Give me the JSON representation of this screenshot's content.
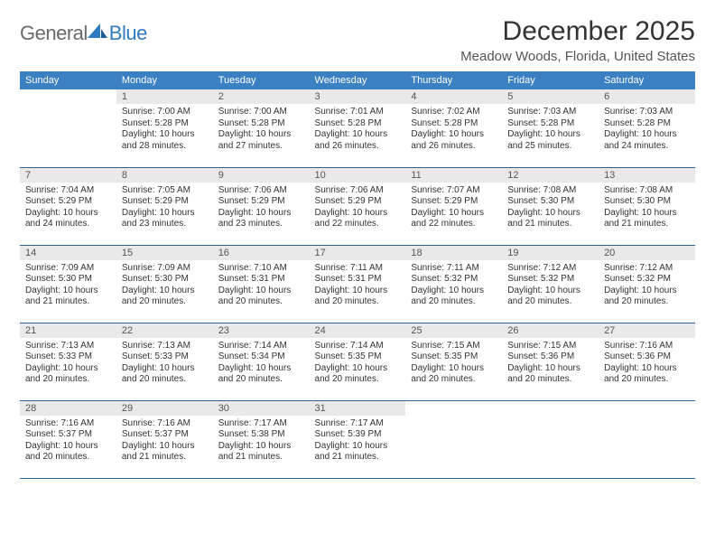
{
  "brand": {
    "word1": "General",
    "word2": "Blue"
  },
  "title": "December 2025",
  "location": "Meadow Woods, Florida, United States",
  "colors": {
    "header_bg": "#3a80c3",
    "header_text": "#ffffff",
    "daynum_bg": "#e9e9e9",
    "rule": "#2b5f98",
    "body_text": "#333333",
    "logo_gray": "#6a6a6a",
    "logo_blue": "#2f7bbf"
  },
  "typography": {
    "title_fontsize": 30,
    "location_fontsize": 15,
    "dow_fontsize": 11,
    "daynum_fontsize": 11,
    "body_fontsize": 10
  },
  "dow": [
    "Sunday",
    "Monday",
    "Tuesday",
    "Wednesday",
    "Thursday",
    "Friday",
    "Saturday"
  ],
  "weeks": [
    [
      {
        "n": "",
        "sunrise": "",
        "sunset": "",
        "daylight": ""
      },
      {
        "n": "1",
        "sunrise": "Sunrise: 7:00 AM",
        "sunset": "Sunset: 5:28 PM",
        "daylight": "Daylight: 10 hours and 28 minutes."
      },
      {
        "n": "2",
        "sunrise": "Sunrise: 7:00 AM",
        "sunset": "Sunset: 5:28 PM",
        "daylight": "Daylight: 10 hours and 27 minutes."
      },
      {
        "n": "3",
        "sunrise": "Sunrise: 7:01 AM",
        "sunset": "Sunset: 5:28 PM",
        "daylight": "Daylight: 10 hours and 26 minutes."
      },
      {
        "n": "4",
        "sunrise": "Sunrise: 7:02 AM",
        "sunset": "Sunset: 5:28 PM",
        "daylight": "Daylight: 10 hours and 26 minutes."
      },
      {
        "n": "5",
        "sunrise": "Sunrise: 7:03 AM",
        "sunset": "Sunset: 5:28 PM",
        "daylight": "Daylight: 10 hours and 25 minutes."
      },
      {
        "n": "6",
        "sunrise": "Sunrise: 7:03 AM",
        "sunset": "Sunset: 5:28 PM",
        "daylight": "Daylight: 10 hours and 24 minutes."
      }
    ],
    [
      {
        "n": "7",
        "sunrise": "Sunrise: 7:04 AM",
        "sunset": "Sunset: 5:29 PM",
        "daylight": "Daylight: 10 hours and 24 minutes."
      },
      {
        "n": "8",
        "sunrise": "Sunrise: 7:05 AM",
        "sunset": "Sunset: 5:29 PM",
        "daylight": "Daylight: 10 hours and 23 minutes."
      },
      {
        "n": "9",
        "sunrise": "Sunrise: 7:06 AM",
        "sunset": "Sunset: 5:29 PM",
        "daylight": "Daylight: 10 hours and 23 minutes."
      },
      {
        "n": "10",
        "sunrise": "Sunrise: 7:06 AM",
        "sunset": "Sunset: 5:29 PM",
        "daylight": "Daylight: 10 hours and 22 minutes."
      },
      {
        "n": "11",
        "sunrise": "Sunrise: 7:07 AM",
        "sunset": "Sunset: 5:29 PM",
        "daylight": "Daylight: 10 hours and 22 minutes."
      },
      {
        "n": "12",
        "sunrise": "Sunrise: 7:08 AM",
        "sunset": "Sunset: 5:30 PM",
        "daylight": "Daylight: 10 hours and 21 minutes."
      },
      {
        "n": "13",
        "sunrise": "Sunrise: 7:08 AM",
        "sunset": "Sunset: 5:30 PM",
        "daylight": "Daylight: 10 hours and 21 minutes."
      }
    ],
    [
      {
        "n": "14",
        "sunrise": "Sunrise: 7:09 AM",
        "sunset": "Sunset: 5:30 PM",
        "daylight": "Daylight: 10 hours and 21 minutes."
      },
      {
        "n": "15",
        "sunrise": "Sunrise: 7:09 AM",
        "sunset": "Sunset: 5:30 PM",
        "daylight": "Daylight: 10 hours and 20 minutes."
      },
      {
        "n": "16",
        "sunrise": "Sunrise: 7:10 AM",
        "sunset": "Sunset: 5:31 PM",
        "daylight": "Daylight: 10 hours and 20 minutes."
      },
      {
        "n": "17",
        "sunrise": "Sunrise: 7:11 AM",
        "sunset": "Sunset: 5:31 PM",
        "daylight": "Daylight: 10 hours and 20 minutes."
      },
      {
        "n": "18",
        "sunrise": "Sunrise: 7:11 AM",
        "sunset": "Sunset: 5:32 PM",
        "daylight": "Daylight: 10 hours and 20 minutes."
      },
      {
        "n": "19",
        "sunrise": "Sunrise: 7:12 AM",
        "sunset": "Sunset: 5:32 PM",
        "daylight": "Daylight: 10 hours and 20 minutes."
      },
      {
        "n": "20",
        "sunrise": "Sunrise: 7:12 AM",
        "sunset": "Sunset: 5:32 PM",
        "daylight": "Daylight: 10 hours and 20 minutes."
      }
    ],
    [
      {
        "n": "21",
        "sunrise": "Sunrise: 7:13 AM",
        "sunset": "Sunset: 5:33 PM",
        "daylight": "Daylight: 10 hours and 20 minutes."
      },
      {
        "n": "22",
        "sunrise": "Sunrise: 7:13 AM",
        "sunset": "Sunset: 5:33 PM",
        "daylight": "Daylight: 10 hours and 20 minutes."
      },
      {
        "n": "23",
        "sunrise": "Sunrise: 7:14 AM",
        "sunset": "Sunset: 5:34 PM",
        "daylight": "Daylight: 10 hours and 20 minutes."
      },
      {
        "n": "24",
        "sunrise": "Sunrise: 7:14 AM",
        "sunset": "Sunset: 5:35 PM",
        "daylight": "Daylight: 10 hours and 20 minutes."
      },
      {
        "n": "25",
        "sunrise": "Sunrise: 7:15 AM",
        "sunset": "Sunset: 5:35 PM",
        "daylight": "Daylight: 10 hours and 20 minutes."
      },
      {
        "n": "26",
        "sunrise": "Sunrise: 7:15 AM",
        "sunset": "Sunset: 5:36 PM",
        "daylight": "Daylight: 10 hours and 20 minutes."
      },
      {
        "n": "27",
        "sunrise": "Sunrise: 7:16 AM",
        "sunset": "Sunset: 5:36 PM",
        "daylight": "Daylight: 10 hours and 20 minutes."
      }
    ],
    [
      {
        "n": "28",
        "sunrise": "Sunrise: 7:16 AM",
        "sunset": "Sunset: 5:37 PM",
        "daylight": "Daylight: 10 hours and 20 minutes."
      },
      {
        "n": "29",
        "sunrise": "Sunrise: 7:16 AM",
        "sunset": "Sunset: 5:37 PM",
        "daylight": "Daylight: 10 hours and 21 minutes."
      },
      {
        "n": "30",
        "sunrise": "Sunrise: 7:17 AM",
        "sunset": "Sunset: 5:38 PM",
        "daylight": "Daylight: 10 hours and 21 minutes."
      },
      {
        "n": "31",
        "sunrise": "Sunrise: 7:17 AM",
        "sunset": "Sunset: 5:39 PM",
        "daylight": "Daylight: 10 hours and 21 minutes."
      },
      {
        "n": "",
        "sunrise": "",
        "sunset": "",
        "daylight": ""
      },
      {
        "n": "",
        "sunrise": "",
        "sunset": "",
        "daylight": ""
      },
      {
        "n": "",
        "sunrise": "",
        "sunset": "",
        "daylight": ""
      }
    ]
  ]
}
